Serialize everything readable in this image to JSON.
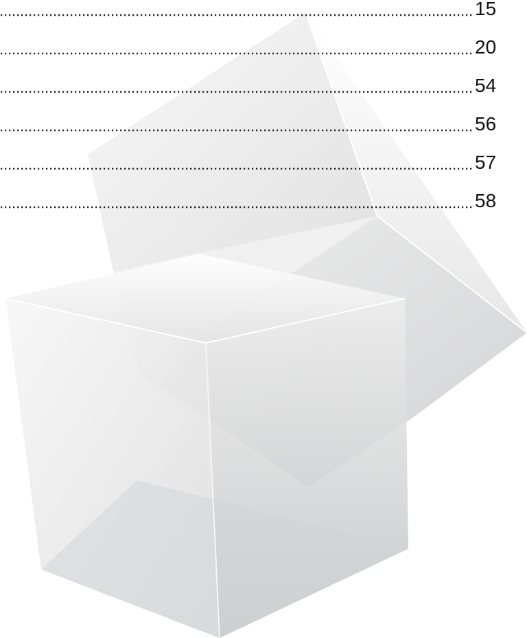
{
  "toc": {
    "entries": [
      {
        "page": 15
      },
      {
        "page": 20
      },
      {
        "page": 54
      },
      {
        "page": 56
      },
      {
        "page": 57
      },
      {
        "page": 58
      }
    ]
  }
}
